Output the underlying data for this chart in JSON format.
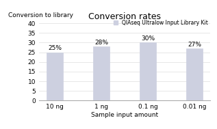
{
  "title": "Conversion rates",
  "ylabel": "Conversion to library",
  "xlabel": "Sample input amount",
  "categories": [
    "10 ng",
    "1 ng",
    "0.1 ng",
    "0.01 ng"
  ],
  "values": [
    25,
    28,
    30,
    27
  ],
  "labels": [
    "25%",
    "28%",
    "30%",
    "27%"
  ],
  "bar_color": "#cdd0e0",
  "bar_edgecolor": "#cdd0e0",
  "ylim": [
    0,
    40
  ],
  "yticks": [
    0,
    5,
    10,
    15,
    20,
    25,
    30,
    35,
    40
  ],
  "legend_label": "QIAseq Ultralow Input Library Kit",
  "legend_color": "#cdd0e0",
  "background_color": "#ffffff",
  "title_fontsize": 9,
  "label_fontsize": 6.5,
  "tick_fontsize": 6.5,
  "ylabel_fontsize": 6.5,
  "xlabel_fontsize": 6.5,
  "legend_fontsize": 5.5
}
